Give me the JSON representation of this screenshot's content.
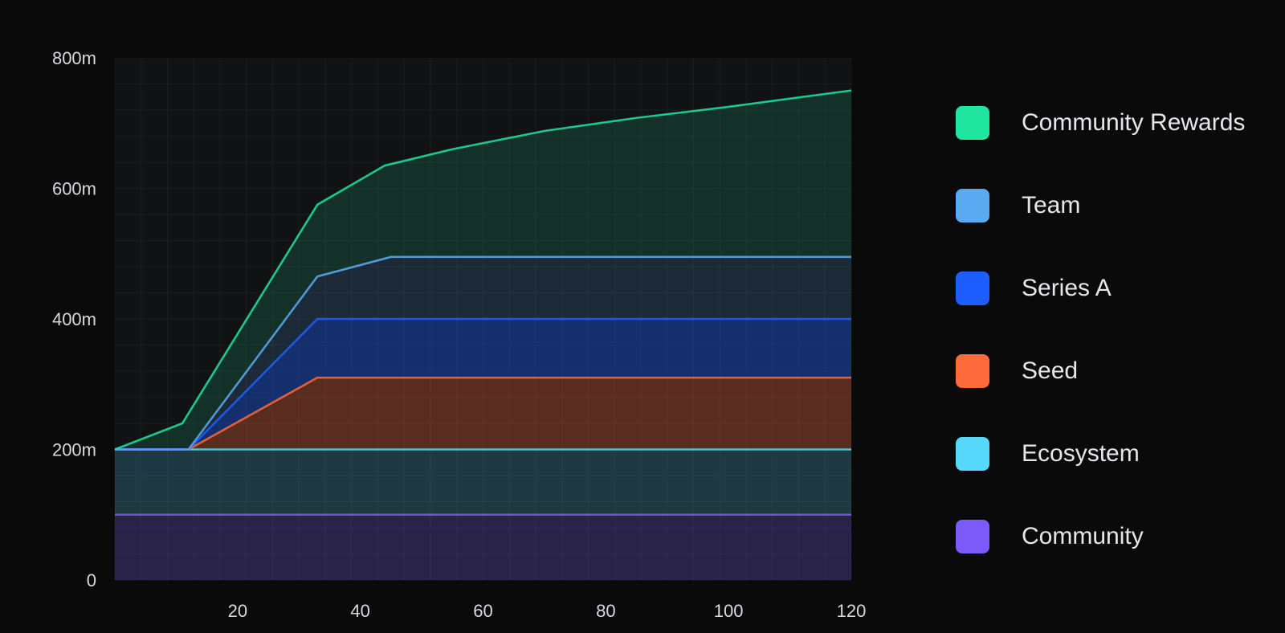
{
  "chart_data": {
    "type": "area",
    "title": "",
    "xlabel": "",
    "ylabel": "",
    "xlim": [
      0,
      120
    ],
    "ylim": [
      0,
      800
    ],
    "x_ticks": [
      20,
      40,
      60,
      80,
      100,
      120
    ],
    "x_tick_labels": [
      "20",
      "40",
      "60",
      "80",
      "100",
      "120"
    ],
    "y_ticks": [
      0,
      200,
      400,
      600,
      800
    ],
    "y_tick_labels": [
      "0",
      "200m",
      "400m",
      "600m",
      "800m"
    ],
    "grid": true,
    "stacked": true,
    "legend_position": "right",
    "series": [
      {
        "name": "Community",
        "color": "#7a5af8",
        "points": [
          [
            0,
            100
          ],
          [
            120,
            100
          ]
        ]
      },
      {
        "name": "Ecosystem",
        "color": "#56d8fb",
        "points": [
          [
            0,
            200
          ],
          [
            120,
            200
          ]
        ]
      },
      {
        "name": "Seed",
        "color": "#ff6a3d",
        "points": [
          [
            0,
            200
          ],
          [
            12,
            200
          ],
          [
            33,
            310
          ],
          [
            120,
            310
          ]
        ]
      },
      {
        "name": "Series A",
        "color": "#1e5eff",
        "points": [
          [
            0,
            200
          ],
          [
            12,
            200
          ],
          [
            33,
            400
          ],
          [
            120,
            400
          ]
        ]
      },
      {
        "name": "Team",
        "color": "#5aaaf2",
        "points": [
          [
            0,
            200
          ],
          [
            12,
            200
          ],
          [
            33,
            465
          ],
          [
            45,
            495
          ],
          [
            120,
            495
          ]
        ]
      },
      {
        "name": "Community Rewards",
        "color": "#1fe5a0",
        "points": [
          [
            0,
            200
          ],
          [
            11,
            240
          ],
          [
            33,
            575
          ],
          [
            44,
            635
          ],
          [
            55,
            660
          ],
          [
            70,
            688
          ],
          [
            85,
            708
          ],
          [
            100,
            725
          ],
          [
            120,
            750
          ]
        ]
      }
    ]
  },
  "legend": {
    "items": [
      {
        "label": "Community Rewards",
        "color": "#1fe5a0"
      },
      {
        "label": "Team",
        "color": "#5aaaf2"
      },
      {
        "label": "Series A",
        "color": "#1e5eff"
      },
      {
        "label": "Seed",
        "color": "#ff6a3d"
      },
      {
        "label": "Ecosystem",
        "color": "#56d8fb"
      },
      {
        "label": "Community",
        "color": "#7a5af8"
      }
    ]
  }
}
